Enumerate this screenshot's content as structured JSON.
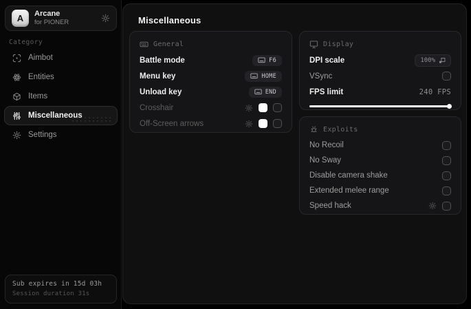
{
  "app": {
    "name": "Arcane",
    "subtitle": "for PIONER",
    "logo_letter": "A"
  },
  "sidebar": {
    "category_label": "Category",
    "items": [
      {
        "label": "Aimbot",
        "icon": "scan-icon",
        "selected": false
      },
      {
        "label": "Entities",
        "icon": "atom-icon",
        "selected": false
      },
      {
        "label": "Items",
        "icon": "package-icon",
        "selected": false
      },
      {
        "label": "Miscellaneous",
        "icon": "sliders-icon",
        "selected": true
      },
      {
        "label": "Settings",
        "icon": "gear-icon",
        "selected": false
      }
    ],
    "footer": {
      "line1": "Sub expires in 15d 03h",
      "line2": "Session duration 31s"
    }
  },
  "main": {
    "title": "Miscellaneous",
    "cards": {
      "general": {
        "title": "General",
        "icon": "keyboard-icon",
        "rows": [
          {
            "label": "Battle mode",
            "keybind": "F6"
          },
          {
            "label": "Menu key",
            "keybind": "HOME"
          },
          {
            "label": "Unload key",
            "keybind": "END"
          },
          {
            "label": "Crosshair",
            "has_settings": true,
            "swatch_color": "#ffffff",
            "checked": false
          },
          {
            "label": "Off-Screen arrows",
            "has_settings": true,
            "swatch_color": "#ffffff",
            "checked": false
          }
        ]
      },
      "display": {
        "title": "Display",
        "icon": "monitor-icon",
        "rows": [
          {
            "label": "DPI scale",
            "value": "100%"
          },
          {
            "label": "VSync",
            "checked": false
          },
          {
            "label": "FPS limit",
            "value": "240 FPS",
            "slider_percent": 100
          }
        ]
      },
      "exploits": {
        "title": "Exploits",
        "icon": "bug-icon",
        "rows": [
          {
            "label": "No Recoil",
            "checked": false
          },
          {
            "label": "No Sway",
            "checked": false
          },
          {
            "label": "Disable camera shake",
            "checked": false
          },
          {
            "label": "Extended melee range",
            "checked": false
          },
          {
            "label": "Speed hack",
            "has_settings": true,
            "checked": false
          }
        ]
      }
    }
  },
  "colors": {
    "accent_swatch": "#ffffff",
    "slider_fill": "#ffffff",
    "background": "#000000",
    "panel": "#101011",
    "card": "#151517"
  }
}
